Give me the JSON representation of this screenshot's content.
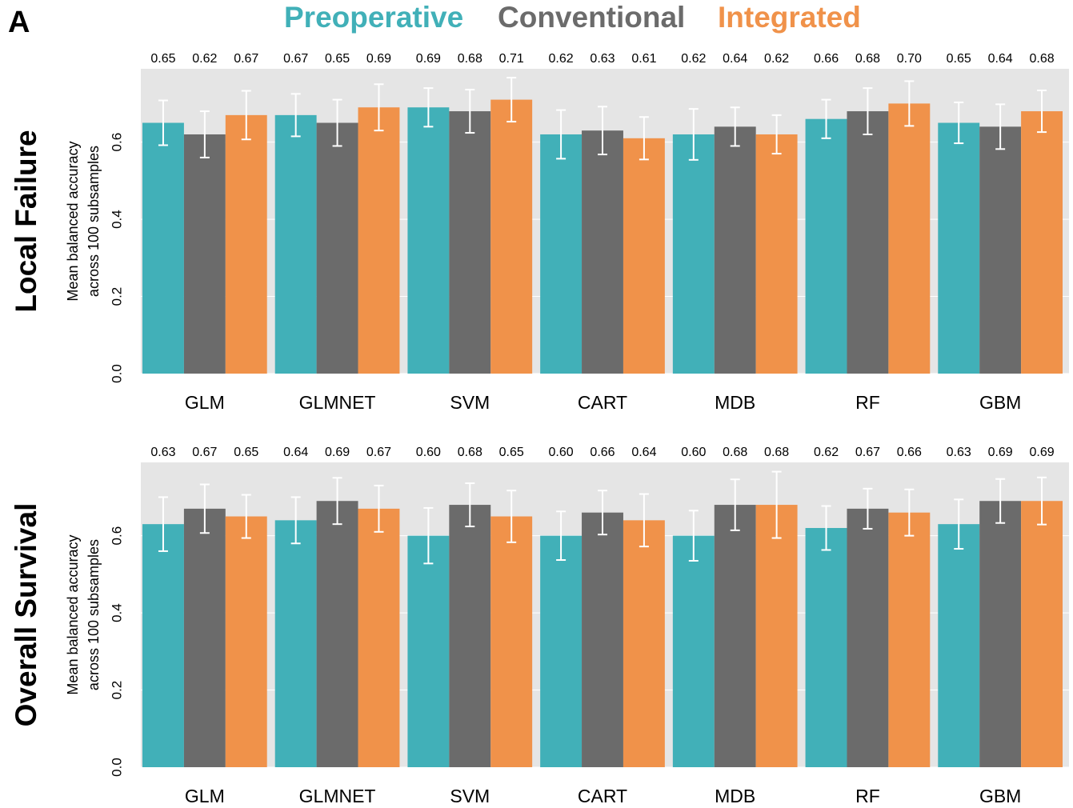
{
  "panel_label": "A",
  "chart_data": [
    {
      "type": "bar",
      "title": "Local Failure",
      "y_label": [
        "Mean balanced accuracy",
        "across 100 subsamples"
      ],
      "categories": [
        "GLM",
        "GLMNET",
        "SVM",
        "CART",
        "MDB",
        "RF",
        "GBM"
      ],
      "ylim": [
        0,
        0.79
      ],
      "yticks": [
        {
          "value": 0,
          "label": "0.0"
        },
        0.2,
        0.4,
        0.6
      ],
      "grid": true,
      "series": [
        {
          "name": "Preoperative",
          "color": "#41b0b8",
          "values": [
            0.65,
            0.67,
            0.69,
            0.62,
            0.62,
            0.66,
            0.65
          ],
          "value_labels": [
            "0.65",
            "0.67",
            "0.69",
            "0.62",
            "0.62",
            "0.66",
            "0.65"
          ],
          "errors": [
            0.058,
            0.055,
            0.05,
            0.063,
            0.066,
            0.05,
            0.053
          ]
        },
        {
          "name": "Conventional",
          "color": "#6b6b6b",
          "values": [
            0.62,
            0.65,
            0.68,
            0.63,
            0.64,
            0.68,
            0.64
          ],
          "value_labels": [
            "0.62",
            "0.65",
            "0.68",
            "0.63",
            "0.64",
            "0.68",
            "0.64"
          ],
          "errors": [
            0.06,
            0.06,
            0.056,
            0.062,
            0.05,
            0.06,
            0.058
          ]
        },
        {
          "name": "Integrated",
          "color": "#f0924a",
          "values": [
            0.67,
            0.69,
            0.71,
            0.61,
            0.62,
            0.7,
            0.68
          ],
          "value_labels": [
            "0.67",
            "0.69",
            "0.71",
            "0.61",
            "0.62",
            "0.70",
            "0.68"
          ],
          "errors": [
            0.063,
            0.06,
            0.057,
            0.055,
            0.05,
            0.058,
            0.054
          ]
        }
      ]
    },
    {
      "type": "bar",
      "title": "Overall Survival",
      "y_label": [
        "Mean balanced accuracy",
        "across 100 subsamples"
      ],
      "categories": [
        "GLM",
        "GLMNET",
        "SVM",
        "CART",
        "MDB",
        "RF",
        "GBM"
      ],
      "ylim": [
        0,
        0.79
      ],
      "yticks": [
        {
          "value": 0,
          "label": "0.0"
        },
        0.2,
        0.4,
        0.6
      ],
      "grid": true,
      "series": [
        {
          "color": "#41b0b8",
          "values": [
            0.63,
            0.64,
            0.6,
            0.6,
            0.6,
            0.62,
            0.63
          ],
          "value_labels": [
            "0.63",
            "0.64",
            "0.60",
            "0.60",
            "0.60",
            "0.62",
            "0.63"
          ],
          "errors": [
            0.07,
            0.06,
            0.072,
            0.063,
            0.065,
            0.057,
            0.064
          ]
        },
        {
          "color": "#6b6b6b",
          "values": [
            0.67,
            0.69,
            0.68,
            0.66,
            0.68,
            0.67,
            0.69
          ],
          "value_labels": [
            "0.67",
            "0.69",
            "0.68",
            "0.66",
            "0.68",
            "0.67",
            "0.69"
          ],
          "errors": [
            0.063,
            0.06,
            0.056,
            0.057,
            0.066,
            0.052,
            0.057
          ]
        },
        {
          "color": "#f0924a",
          "values": [
            0.65,
            0.67,
            0.65,
            0.64,
            0.68,
            0.66,
            0.69
          ],
          "value_labels": [
            "0.65",
            "0.67",
            "0.65",
            "0.64",
            "0.68",
            "0.66",
            "0.69"
          ],
          "errors": [
            0.056,
            0.06,
            0.067,
            0.068,
            0.086,
            0.06,
            0.061
          ]
        }
      ]
    }
  ]
}
